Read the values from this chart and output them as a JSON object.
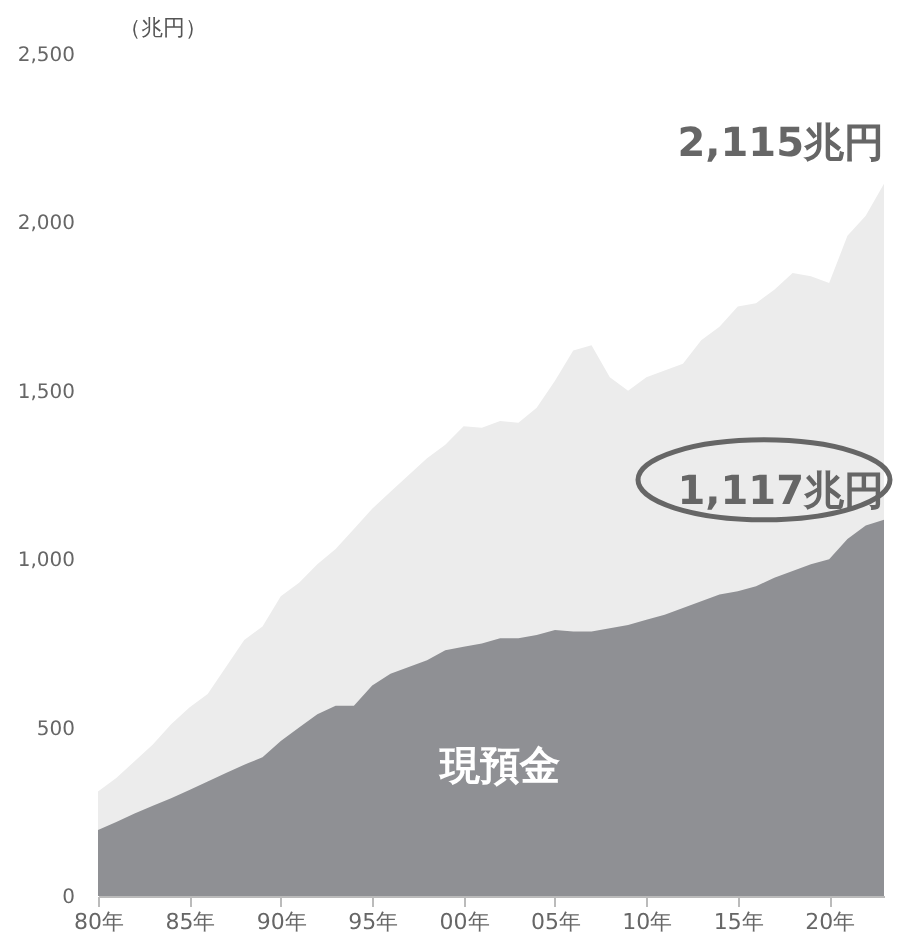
{
  "chart_data": {
    "type": "area",
    "ylabel": "（兆円）",
    "categories": [
      "80年",
      null,
      null,
      null,
      null,
      "85年",
      null,
      null,
      null,
      null,
      "90年",
      null,
      null,
      null,
      null,
      "95年",
      null,
      null,
      null,
      null,
      "00年",
      null,
      null,
      null,
      null,
      "05年",
      null,
      null,
      null,
      null,
      "10年",
      null,
      null,
      null,
      null,
      "15年",
      null,
      null,
      null,
      null,
      "20年",
      null,
      null,
      null
    ],
    "series": [
      {
        "color": "#ececec",
        "values": [
          310,
          350,
          400,
          450,
          510,
          560,
          600,
          680,
          760,
          800,
          890,
          930,
          985,
          1030,
          1090,
          1150,
          1200,
          1250,
          1300,
          1340,
          1395,
          1390,
          1410,
          1405,
          1450,
          1530,
          1620,
          1635,
          1540,
          1500,
          1540,
          1560,
          1580,
          1650,
          1690,
          1750,
          1760,
          1800,
          1850,
          1840,
          1820,
          1960,
          2020,
          2115
        ]
      },
      {
        "name": "現預金",
        "color": "#8f9094",
        "values": [
          196,
          220,
          245,
          268,
          290,
          315,
          340,
          365,
          390,
          412,
          460,
          500,
          540,
          565,
          565,
          625,
          660,
          680,
          700,
          730,
          740,
          750,
          765,
          765,
          775,
          790,
          785,
          785,
          795,
          805,
          820,
          835,
          855,
          875,
          895,
          905,
          920,
          945,
          965,
          985,
          1000,
          1060,
          1100,
          1117
        ]
      }
    ],
    "ylim": [
      0,
      2500
    ],
    "yticks": [
      0,
      {
        "value": 500,
        "label": "500"
      },
      {
        "value": 1000,
        "label": "1,000"
      },
      {
        "value": 1500,
        "label": "1,500"
      },
      {
        "value": 2000,
        "label": "2,000"
      },
      {
        "value": 2500,
        "label": "2,500"
      }
    ],
    "annotations": [
      "2,115兆円",
      "1,117兆円"
    ],
    "grid": false
  }
}
